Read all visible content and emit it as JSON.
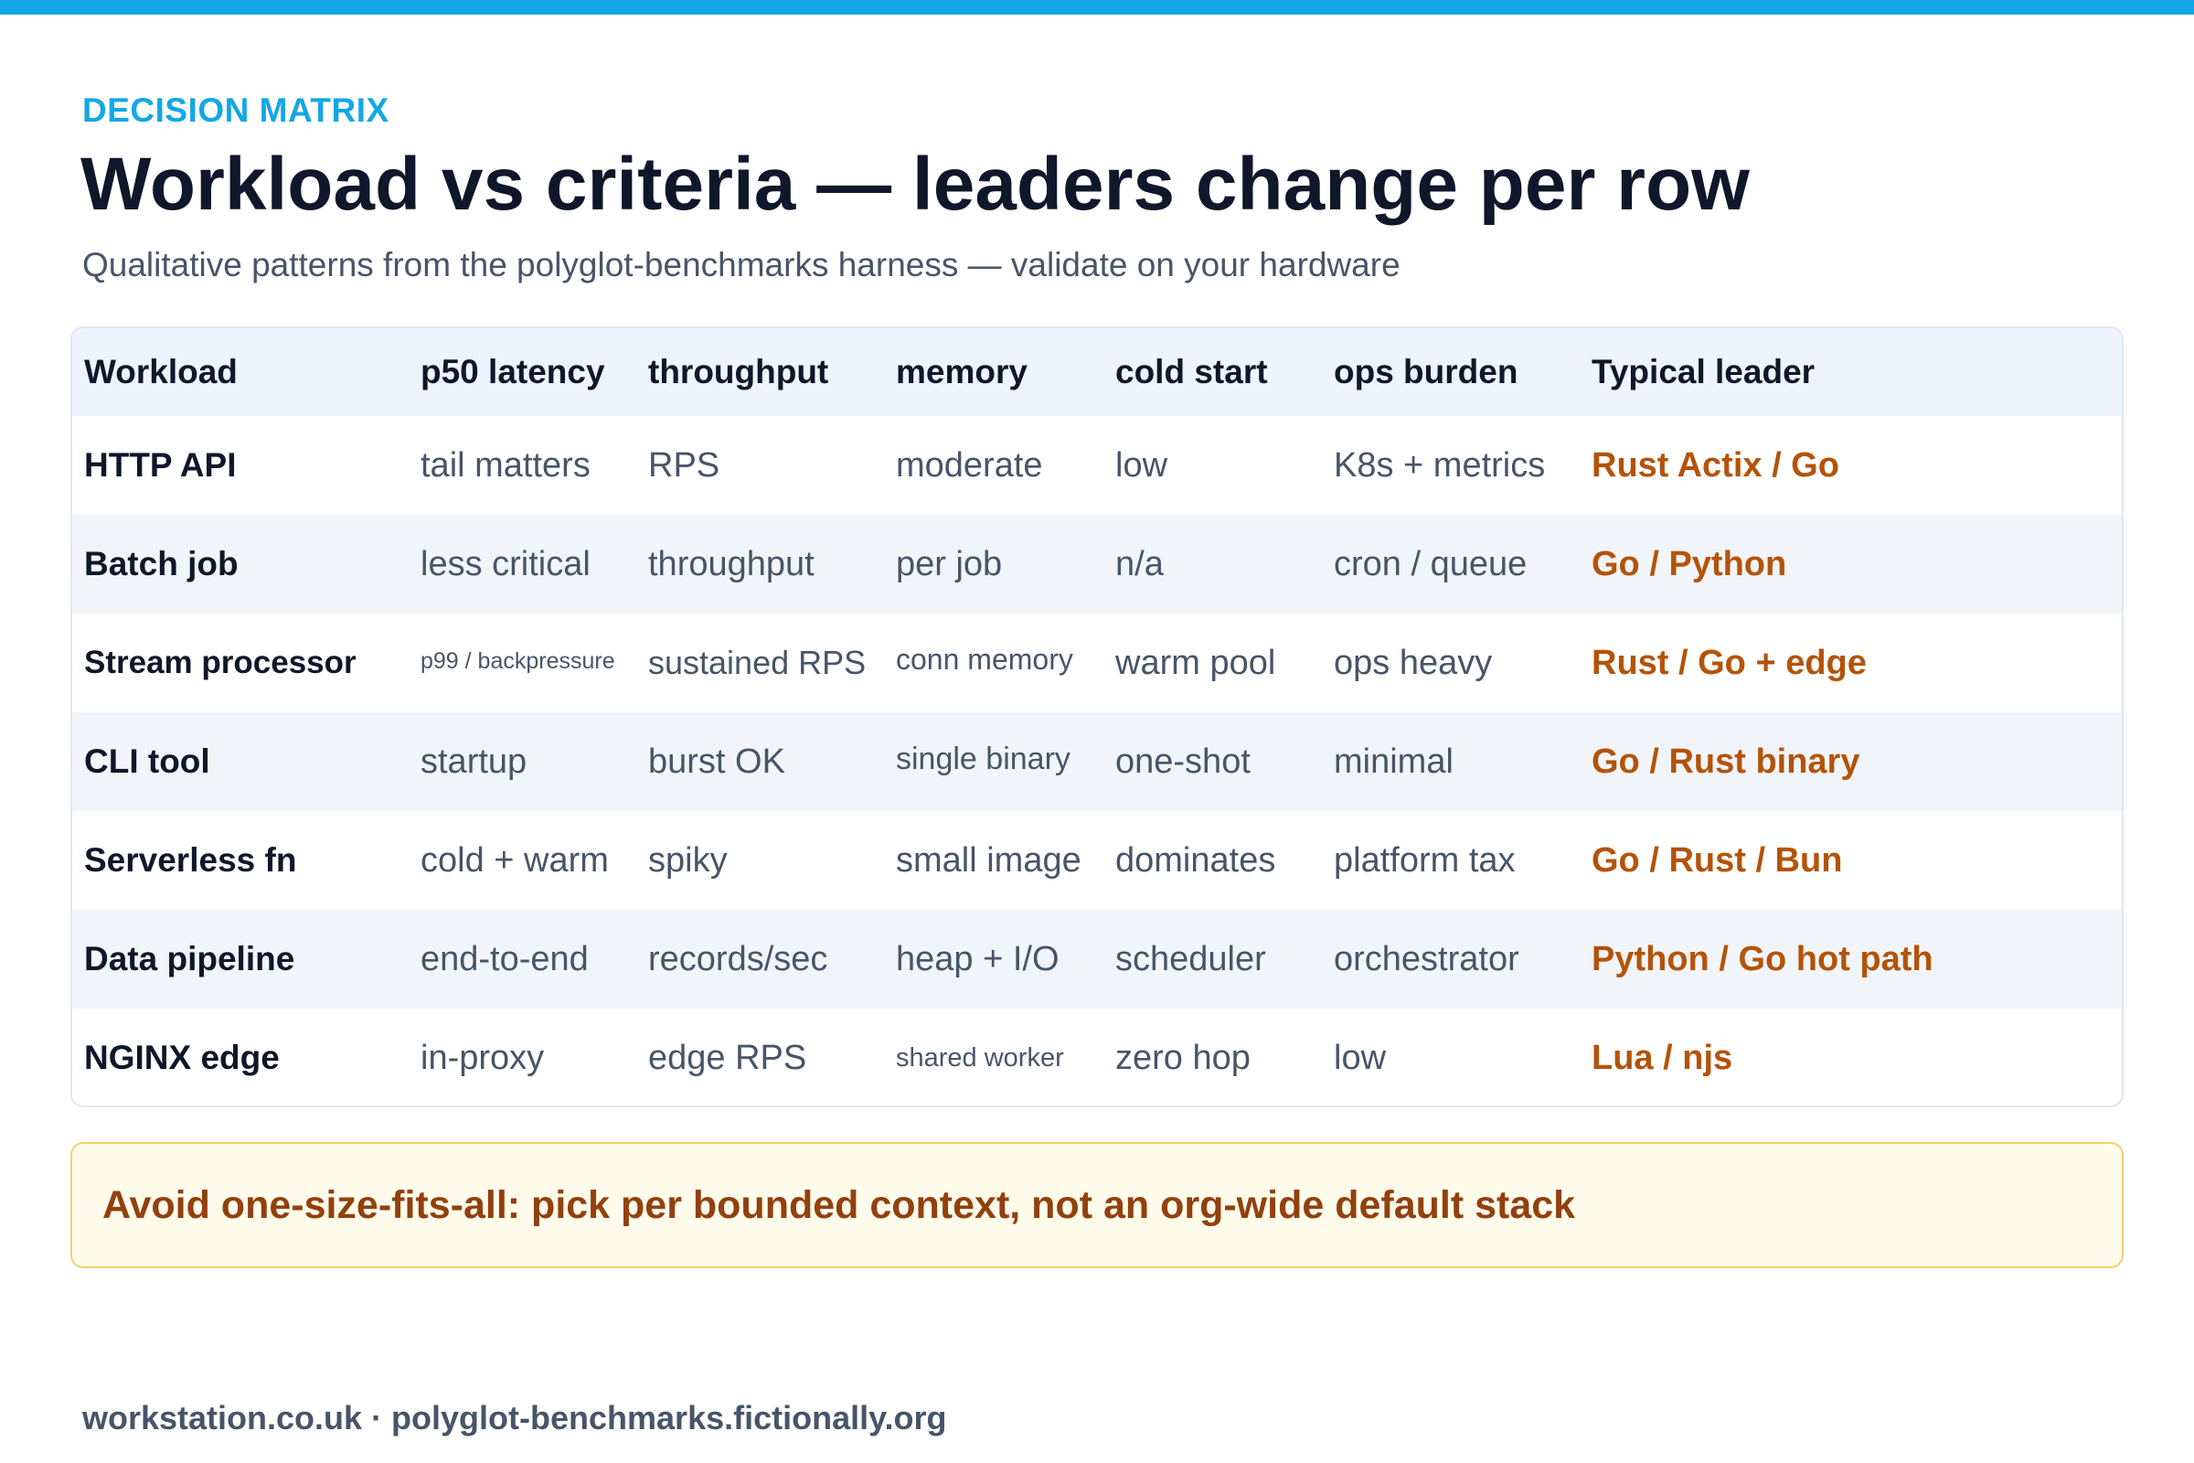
{
  "header": {
    "eyebrow": "DECISION MATRIX",
    "title": "Workload vs criteria — leaders change per row",
    "subtitle": "Qualitative patterns from the polyglot-benchmarks harness — validate on your hardware"
  },
  "table": {
    "columns": [
      "Workload",
      "p50 latency",
      "throughput",
      "memory",
      "cold start",
      "ops burden",
      "Typical leader"
    ],
    "rows": [
      [
        "HTTP API",
        "tail matters",
        "RPS",
        "moderate",
        "low",
        "K8s + metrics",
        "Rust Actix / Go"
      ],
      [
        "Batch job",
        "less critical",
        "throughput",
        "per job",
        "n/a",
        "cron / queue",
        "Go / Python"
      ],
      [
        "Stream processor",
        "p99 / backpressure",
        "sustained RPS",
        "conn memory",
        "warm pool",
        "ops heavy",
        "Rust / Go + edge"
      ],
      [
        "CLI tool",
        "startup",
        "burst OK",
        "single binary",
        "one-shot",
        "minimal",
        "Go / Rust binary"
      ],
      [
        "Serverless fn",
        "cold + warm",
        "spiky",
        "small image",
        "dominates",
        "platform tax",
        "Go / Rust / Bun"
      ],
      [
        "Data pipeline",
        "end-to-end",
        "records/sec",
        "heap + I/O",
        "scheduler",
        "orchestrator",
        "Python / Go hot path"
      ],
      [
        "NGINX edge",
        "in-proxy",
        "edge RPS",
        "shared worker",
        "zero hop",
        "low",
        "Lua / njs"
      ]
    ]
  },
  "callout": "Avoid one-size-fits-all: pick per bounded context, not an org-wide default stack",
  "footer": "workstation.co.uk · polyglot-benchmarks.fictionally.org"
}
